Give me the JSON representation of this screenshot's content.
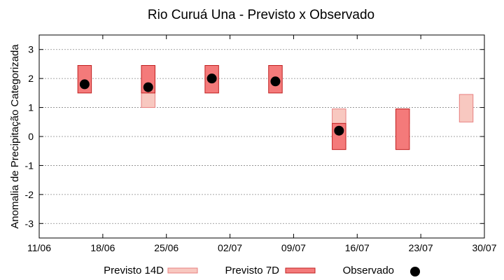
{
  "chart_data": {
    "type": "floating-bar-scatter",
    "title": "Rio Curuá Una - Previsto x Observado",
    "xlabel": "",
    "ylabel": "Anomalia de Precipitação Categorizada",
    "ylim": [
      -3.5,
      3.5
    ],
    "yticks": [
      3,
      2,
      1,
      0,
      -1,
      -2,
      -3
    ],
    "ytick_labels": [
      "3",
      "2",
      "1",
      "0",
      "-1",
      "-2",
      "-3"
    ],
    "xlim": [
      "2025-06-11",
      "2025-07-30"
    ],
    "xticks": [
      "2025-06-11",
      "2025-06-18",
      "2025-06-25",
      "2025-07-02",
      "2025-07-09",
      "2025-07-16",
      "2025-07-23",
      "2025-07-30"
    ],
    "xtick_labels": [
      "11/06",
      "18/06",
      "25/06",
      "02/07",
      "09/07",
      "16/07",
      "23/07",
      "30/07"
    ],
    "grid": true,
    "legend_position": "bottom",
    "series": [
      {
        "name": "Previsto 14D",
        "kind": "range",
        "color": "#f8c8c0",
        "border": "#e88080",
        "points": [
          {
            "x": "2025-06-23",
            "low": 1.0,
            "high": 2.45
          },
          {
            "x": "2025-07-14",
            "low": 0.45,
            "high": 0.95
          },
          {
            "x": "2025-07-21",
            "low": 0.45,
            "high": 0.95
          },
          {
            "x": "2025-07-28",
            "low": 0.5,
            "high": 1.45
          }
        ]
      },
      {
        "name": "Previsto 7D",
        "kind": "range",
        "color": "#f47a7a",
        "border": "#c02020",
        "points": [
          {
            "x": "2025-06-16",
            "low": 1.5,
            "high": 2.45
          },
          {
            "x": "2025-06-23",
            "low": 1.5,
            "high": 2.45
          },
          {
            "x": "2025-06-30",
            "low": 1.5,
            "high": 2.45
          },
          {
            "x": "2025-07-07",
            "low": 1.5,
            "high": 2.45
          },
          {
            "x": "2025-07-14",
            "low": -0.45,
            "high": 0.45
          },
          {
            "x": "2025-07-21",
            "low": -0.45,
            "high": 0.95
          }
        ]
      },
      {
        "name": "Observado",
        "kind": "point",
        "color": "#000000",
        "points": [
          {
            "x": "2025-06-16",
            "y": 1.8
          },
          {
            "x": "2025-06-23",
            "y": 1.7
          },
          {
            "x": "2025-06-30",
            "y": 2.0
          },
          {
            "x": "2025-07-07",
            "y": 1.9
          },
          {
            "x": "2025-07-14",
            "y": 0.2
          }
        ]
      }
    ]
  }
}
